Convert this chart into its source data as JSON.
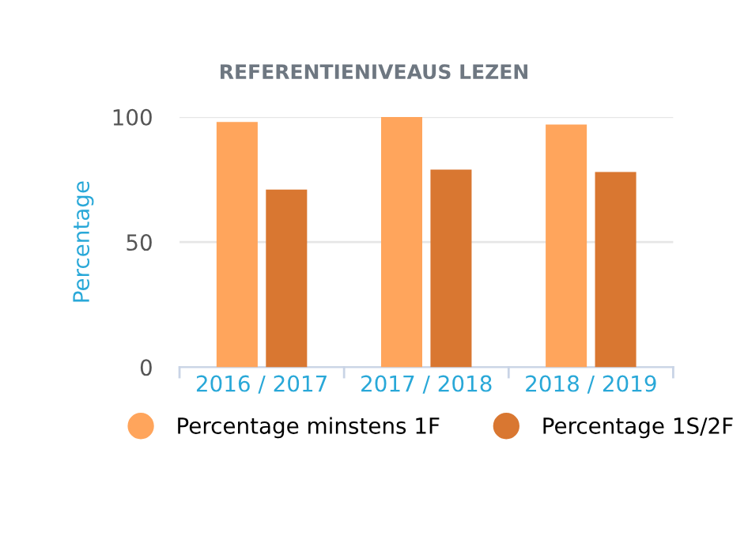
{
  "chart_data": {
    "type": "bar",
    "title": "REFERENTIENIVEAUS LEZEN",
    "ylabel": "Percentage",
    "categories": [
      "2016 / 2017",
      "2017 / 2018",
      "2018 / 2019"
    ],
    "series": [
      {
        "name": "Percentage minstens 1F",
        "color": "#ffa55c",
        "values": [
          98,
          100,
          97
        ]
      },
      {
        "name": "Percentage 1S/2F",
        "color": "#d97731",
        "values": [
          71,
          79,
          78
        ]
      }
    ],
    "ylim": [
      0,
      100
    ],
    "yticks": [
      0,
      50,
      100
    ],
    "grid": "y",
    "legend": "bottom"
  }
}
